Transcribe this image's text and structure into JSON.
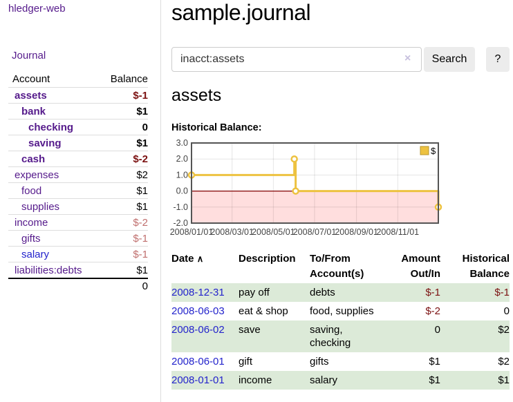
{
  "colors": {
    "purple": "#551a8b",
    "blue": "#2323cc",
    "neg-dark": "#7b1111",
    "neg-light": "#c06f6e",
    "lavender": "#c7c0de",
    "row-green": "#dcead8",
    "chart-yellow": "#edc240",
    "chart-yellow-dark": "#b8962e",
    "chart-pink": "#ffdede",
    "chart-zero-line": "#800000",
    "chart-border": "#545454",
    "chart-grid": "#e2e2e2",
    "chart-text": "#444444"
  },
  "app": {
    "name": "hledger-web"
  },
  "sidebar": {
    "journal_link": "Journal",
    "table": {
      "account_header": "Account",
      "balance_header": "Balance",
      "rows": [
        {
          "name": "assets",
          "indent": 0,
          "bold": true,
          "link_color": "purple",
          "balance": "$-1",
          "balance_color": "neg_dark"
        },
        {
          "name": "bank",
          "indent": 1,
          "bold": true,
          "link_color": "purple",
          "balance": "$1",
          "balance_color": "normal"
        },
        {
          "name": "checking",
          "indent": 2,
          "bold": true,
          "link_color": "purple",
          "balance": "0",
          "balance_color": "normal"
        },
        {
          "name": "saving",
          "indent": 2,
          "bold": true,
          "link_color": "purple",
          "balance": "$1",
          "balance_color": "normal"
        },
        {
          "name": "cash",
          "indent": 1,
          "bold": true,
          "link_color": "purple",
          "balance": "$-2",
          "balance_color": "neg_dark"
        },
        {
          "name": "expenses",
          "indent": 0,
          "bold": false,
          "link_color": "purple",
          "balance": "$2",
          "balance_color": "normal"
        },
        {
          "name": "food",
          "indent": 1,
          "bold": false,
          "link_color": "purple",
          "balance": "$1",
          "balance_color": "normal"
        },
        {
          "name": "supplies",
          "indent": 1,
          "bold": false,
          "link_color": "purple",
          "balance": "$1",
          "balance_color": "normal"
        },
        {
          "name": "income",
          "indent": 0,
          "bold": false,
          "link_color": "purple",
          "balance": "$-2",
          "balance_color": "neg_light"
        },
        {
          "name": "gifts",
          "indent": 1,
          "bold": false,
          "link_color": "purple",
          "balance": "$-1",
          "balance_color": "neg_light"
        },
        {
          "name": "salary",
          "indent": 1,
          "bold": false,
          "link_color": "blue",
          "balance": "$-1",
          "balance_color": "neg_light"
        },
        {
          "name": "liabilities:debts",
          "indent": 0,
          "bold": false,
          "link_color": "purple",
          "balance": "$1",
          "balance_color": "normal"
        }
      ],
      "total": "0"
    }
  },
  "main": {
    "title": "sample.journal",
    "search": {
      "query": "inacct:assets",
      "clear_icon": "×",
      "button_label": "Search",
      "help_label": "?"
    },
    "account_heading": "assets",
    "chart_label": "Historical Balance:",
    "register": {
      "headers": {
        "date": "Date",
        "sort_icon": "∧",
        "description": "Description",
        "tofrom": "To/From\nAccount(s)",
        "amount": "Amount\nOut/In",
        "balance": "Historical\nBalance"
      },
      "rows": [
        {
          "date": "2008-12-31",
          "description": "pay off",
          "accounts": "debts",
          "amount": "$-1",
          "balance": "$-1"
        },
        {
          "date": "2008-06-03",
          "description": "eat & shop",
          "accounts": "food, supplies",
          "amount": "$-2",
          "balance": "0"
        },
        {
          "date": "2008-06-02",
          "description": "save",
          "accounts": "saving,\nchecking",
          "amount": "0",
          "balance": "$2"
        },
        {
          "date": "2008-06-01",
          "description": "gift",
          "accounts": "gifts",
          "amount": "$1",
          "balance": "$2"
        },
        {
          "date": "2008-01-01",
          "description": "income",
          "accounts": "salary",
          "amount": "$1",
          "balance": "$1"
        }
      ]
    }
  },
  "chart_data": {
    "type": "line",
    "step": true,
    "title": "Historical Balance:",
    "series": [
      {
        "name": "$",
        "color": "#edc240",
        "points": [
          [
            0,
            1
          ],
          [
            152,
            2
          ],
          [
            153,
            2
          ],
          [
            154,
            0
          ],
          [
            365,
            -1
          ]
        ],
        "marker_points": [
          [
            0,
            1
          ],
          [
            152,
            2
          ],
          [
            154,
            0
          ],
          [
            365,
            -1
          ]
        ],
        "point_dates": [
          "2008-01-01",
          "2008-06-01",
          "2008-06-02",
          "2008-06-03",
          "2008-12-31"
        ]
      }
    ],
    "x_range_days": [
      0,
      365
    ],
    "x_tick_days": [
      0,
      60,
      121,
      182,
      244,
      305
    ],
    "x_tick_labels": [
      "2008/01/01",
      "2008/03/01",
      "2008/05/01",
      "2008/07/01",
      "2008/09/01",
      "2008/11/01"
    ],
    "y_ticks": [
      "3.0",
      "2.0",
      "1.0",
      "0.0",
      "-1.0",
      "-2.0"
    ],
    "y_tick_values": [
      3,
      2,
      1,
      0,
      -1,
      -2
    ],
    "ylim": [
      -2,
      3
    ],
    "grid": true,
    "negative_region_shaded": true,
    "legend": {
      "label": "$",
      "position": "top-right"
    }
  }
}
